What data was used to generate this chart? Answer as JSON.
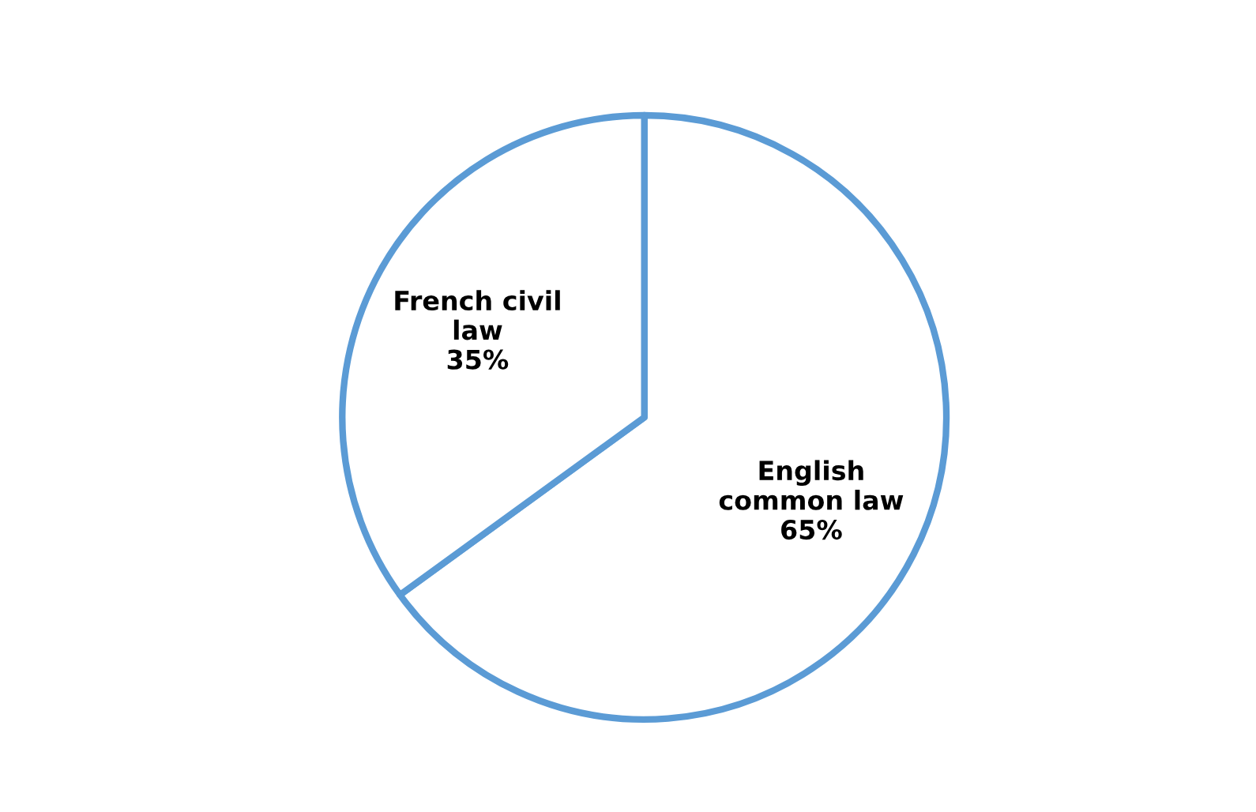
{
  "chart_data": {
    "type": "pie",
    "categories": [
      "French civil\nlaw",
      "English\ncommon law"
    ],
    "values": [
      35,
      65
    ],
    "colors": [
      "#5b9bd5",
      "#5b9bd5"
    ],
    "value_labels": [
      "35%",
      "65%"
    ]
  }
}
